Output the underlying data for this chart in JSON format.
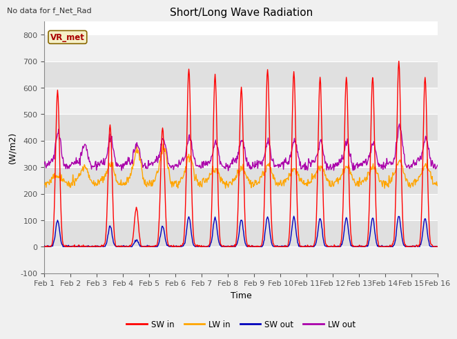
{
  "title": "Short/Long Wave Radiation",
  "top_left_text": "No data for f_Net_Rad",
  "vr_met_label": "VR_met",
  "xlabel": "Time",
  "ylabel": "(W/m2)",
  "ylim": [
    -100,
    850
  ],
  "yticks": [
    -100,
    0,
    100,
    200,
    300,
    400,
    500,
    600,
    700,
    800
  ],
  "xtick_labels": [
    "Feb 1",
    "Feb 2",
    "Feb 3",
    "Feb 4",
    "Feb 5",
    "Feb 6",
    "Feb 7",
    "Feb 8",
    "Feb 9",
    "Feb 10",
    "Feb 11",
    "Feb 12",
    "Feb 13",
    "Feb 14",
    "Feb 15",
    "Feb 16"
  ],
  "colors": {
    "SW_in": "#ff0000",
    "LW_in": "#ffa500",
    "SW_out": "#0000bb",
    "LW_out": "#aa00aa"
  },
  "legend_labels": [
    "SW in",
    "LW in",
    "SW out",
    "LW out"
  ],
  "fig_facecolor": "#f0f0f0",
  "plot_facecolor": "#ffffff",
  "band_color_light": "#f0f0f0",
  "band_color_dark": "#e0e0e0",
  "grid_line_color": "#d8d8d8",
  "sw_in_daily_peaks": [
    590,
    0,
    460,
    150,
    450,
    670,
    650,
    600,
    670,
    660,
    640,
    640,
    640,
    700,
    640
  ],
  "lw_in_base": 250,
  "lw_out_base": 310,
  "sw_out_scale": 0.17,
  "n_days": 15
}
